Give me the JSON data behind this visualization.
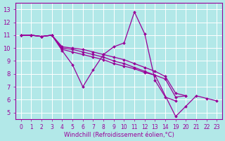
{
  "bg_color": "#b2e8e8",
  "grid_color": "#c8e8e8",
  "line_color": "#990099",
  "xlabel": "Windchill (Refroidissement éolien,°C)",
  "ylim": [
    4.5,
    13.5
  ],
  "yticks": [
    5,
    6,
    7,
    8,
    9,
    10,
    11,
    12,
    13
  ],
  "xtick_labels": [
    "0",
    "1",
    "2",
    "3",
    "4",
    "5",
    "6",
    "7",
    "8",
    "9",
    "10",
    "11",
    "12",
    "13",
    "14",
    "19",
    "20",
    "21",
    "22",
    "23"
  ],
  "lines": [
    {
      "xi": [
        0,
        1,
        2,
        3,
        4,
        5,
        6,
        7,
        8,
        9,
        10,
        11,
        12,
        13,
        14,
        15
      ],
      "y": [
        11.0,
        11.0,
        10.9,
        11.0,
        9.8,
        8.7,
        7.0,
        8.3,
        9.5,
        10.1,
        10.4,
        12.8,
        11.1,
        7.5,
        6.2,
        5.9
      ]
    },
    {
      "xi": [
        0,
        1,
        2,
        3,
        4,
        5,
        6,
        7,
        8,
        9,
        10,
        11,
        12,
        13,
        15,
        16,
        17,
        18,
        19
      ],
      "y": [
        11.0,
        11.0,
        10.9,
        11.0,
        9.9,
        9.7,
        9.5,
        9.3,
        9.1,
        8.8,
        8.6,
        8.4,
        8.1,
        7.9,
        4.7,
        5.5,
        6.3,
        6.1,
        5.9
      ]
    },
    {
      "xi": [
        0,
        1,
        2,
        3,
        4,
        5,
        6,
        7,
        8,
        9,
        10,
        11,
        12,
        13,
        14,
        15,
        16
      ],
      "y": [
        11.0,
        11.0,
        10.9,
        11.0,
        10.0,
        9.9,
        9.7,
        9.5,
        9.3,
        9.0,
        8.8,
        8.5,
        8.2,
        7.9,
        7.6,
        6.2,
        6.3
      ]
    },
    {
      "xi": [
        0,
        1,
        2,
        3,
        4,
        5,
        6,
        7,
        8,
        9,
        10,
        11,
        12,
        13,
        14,
        15,
        16
      ],
      "y": [
        11.0,
        11.0,
        10.9,
        11.0,
        10.1,
        10.0,
        9.9,
        9.7,
        9.5,
        9.3,
        9.1,
        8.8,
        8.5,
        8.2,
        7.8,
        6.5,
        6.3
      ]
    }
  ]
}
